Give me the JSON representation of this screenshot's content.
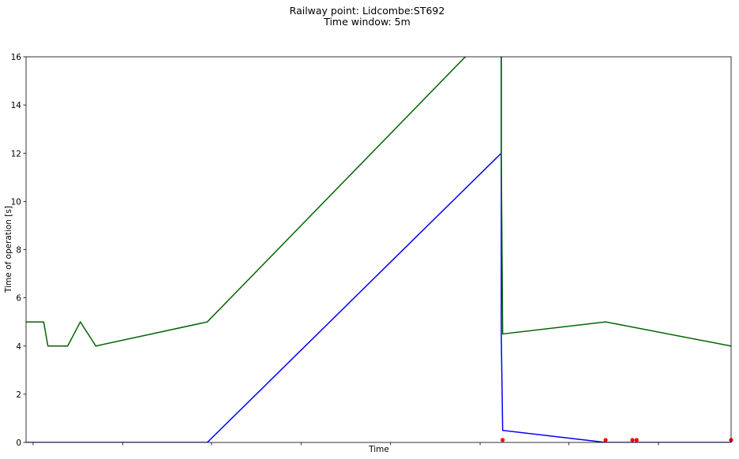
{
  "chart_data": {
    "type": "line",
    "title": "Railway point: Lidcombe:ST692",
    "subtitle": "Time window: 5m",
    "xlabel": "Time",
    "ylabel": "Time of operation [s]",
    "ylim": [
      0,
      16
    ],
    "xlim": [
      0,
      1
    ],
    "y_ticks": [
      0,
      2,
      4,
      6,
      8,
      10,
      12,
      14,
      16
    ],
    "x_ticks_minor": [
      0.01,
      0.137,
      0.263,
      0.39,
      0.517,
      0.644,
      0.77,
      0.897
    ],
    "x_tick_labels_shown": false,
    "grid": false,
    "series": [
      {
        "color": "#0000ff",
        "points": [
          [
            0,
            0
          ],
          [
            0.257,
            0
          ],
          [
            0.674,
            12
          ],
          [
            0.674,
            16
          ],
          [
            0.674,
            4.5
          ],
          [
            0.676,
            0.5
          ],
          [
            0.822,
            0
          ],
          [
            1.0,
            0
          ]
        ]
      },
      {
        "color": "#006400",
        "points": [
          [
            0,
            5
          ],
          [
            0.025,
            5
          ],
          [
            0.031,
            4
          ],
          [
            0.059,
            4
          ],
          [
            0.077,
            5
          ],
          [
            0.099,
            4
          ],
          [
            0.257,
            5
          ],
          [
            0.633,
            16.3
          ],
          [
            0.674,
            16.3
          ],
          [
            0.674,
            12
          ],
          [
            0.676,
            4.5
          ],
          [
            0.822,
            5
          ],
          [
            1.0,
            4
          ]
        ]
      }
    ],
    "markers": {
      "color": "#ff0000",
      "points": [
        [
          0.676,
          0.1
        ],
        [
          0.822,
          0.1
        ],
        [
          0.86,
          0.1
        ],
        [
          0.866,
          0.1
        ],
        [
          1.0,
          0.1
        ]
      ]
    }
  }
}
